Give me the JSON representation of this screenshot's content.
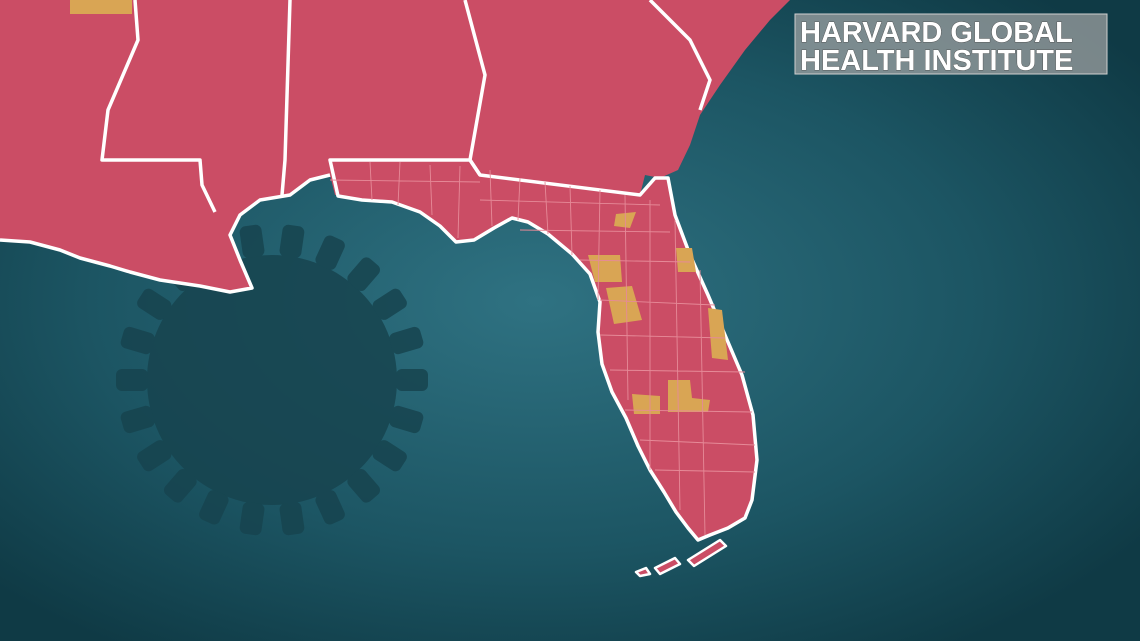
{
  "label": {
    "lines": [
      "HARVARD GLOBAL",
      "HEALTH INSTITUTE"
    ]
  }
}
